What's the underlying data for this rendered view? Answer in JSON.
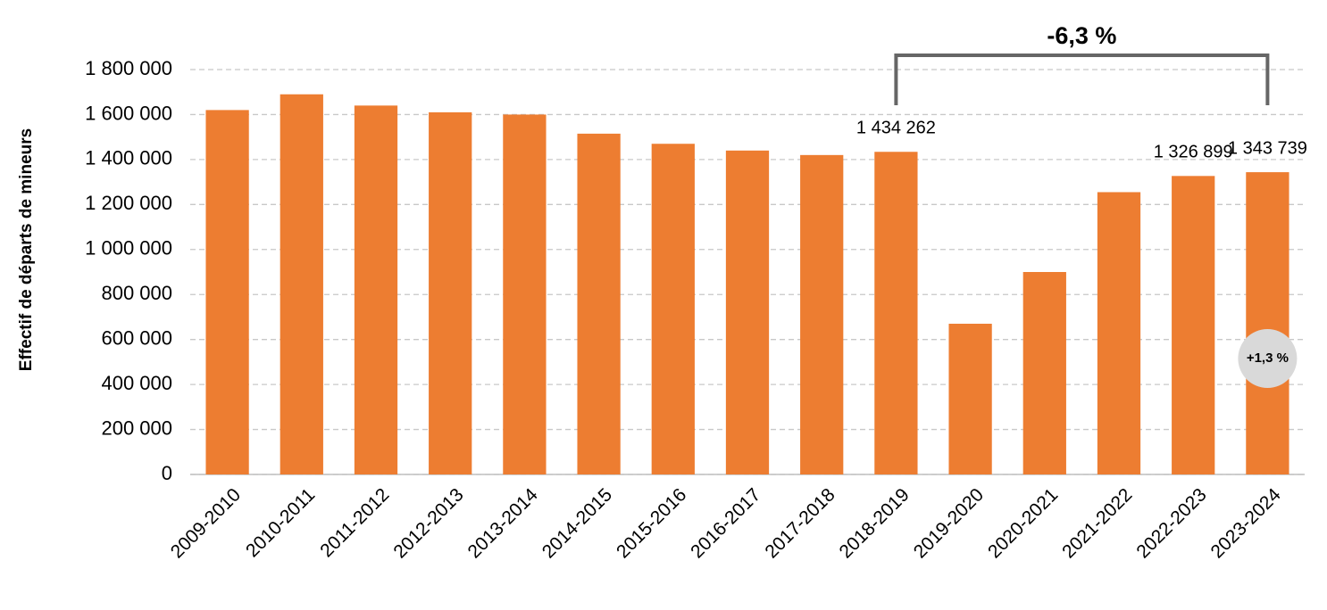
{
  "chart_data": {
    "type": "bar",
    "y_axis_label": "Effectif de départs de mineurs",
    "categories": [
      "2009-2010",
      "2010-2011",
      "2011-2012",
      "2012-2013",
      "2013-2014",
      "2014-2015",
      "2015-2016",
      "2016-2017",
      "2017-2018",
      "2018-2019",
      "2019-2020",
      "2020-2021",
      "2021-2022",
      "2022-2023",
      "2023-2024"
    ],
    "values": [
      1620000,
      1690000,
      1640000,
      1610000,
      1600000,
      1515000,
      1470000,
      1440000,
      1420000,
      1434262,
      670000,
      900000,
      1255000,
      1326899,
      1343739
    ],
    "value_labels": [
      null,
      null,
      null,
      null,
      null,
      null,
      null,
      null,
      null,
      "1 434 262",
      null,
      null,
      null,
      "1 326 899",
      "1 343 739"
    ],
    "color": "#ed7d31",
    "ylim": [
      0,
      1800000
    ],
    "yticks": [
      0,
      {
        "value": 200000,
        "label": "200 000"
      },
      {
        "value": 400000,
        "label": "400 000"
      },
      {
        "value": 600000,
        "label": "600 000"
      },
      {
        "value": 800000,
        "label": "800 000"
      },
      {
        "value": 1000000,
        "label": "1 000 000"
      },
      {
        "value": 1200000,
        "label": "1 200 000"
      },
      {
        "value": 1400000,
        "label": "1 400 000"
      },
      {
        "value": 1600000,
        "label": "1 600 000"
      },
      {
        "value": 1800000,
        "label": "1 800 000"
      }
    ],
    "grid": true,
    "annotations": [
      {
        "text": "-6,3 %",
        "style": "bracket",
        "between": [
          "2018-2019",
          "2023-2024"
        ]
      },
      {
        "text": "+1,3 %",
        "style": "circle",
        "category": "2023-2024"
      }
    ]
  }
}
